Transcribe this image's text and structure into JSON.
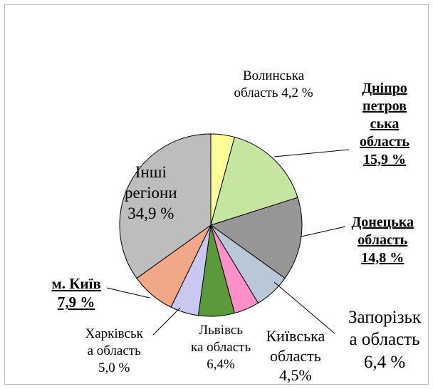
{
  "chart_data": {
    "type": "pie",
    "slices": [
      {
        "key": "volyn",
        "lines": [
          "Волинська",
          "область 4,2 %"
        ],
        "value": 4.2,
        "color": "#ffff99",
        "bold": false
      },
      {
        "key": "dnipro",
        "lines": [
          "Дніпро",
          "петров",
          "ська",
          "область",
          "15,9 %"
        ],
        "value": 15.9,
        "color": "#c6e5a0",
        "bold": true
      },
      {
        "key": "donetsk",
        "lines": [
          "Донецька",
          "область",
          "14,8 %"
        ],
        "value": 14.8,
        "color": "#969696",
        "bold": true
      },
      {
        "key": "zaporizh",
        "lines": [
          "Запорізьк",
          "а область",
          "6,4 %"
        ],
        "value": 6.4,
        "color": "#b8c8d8",
        "bold": false
      },
      {
        "key": "kyivska",
        "lines": [
          "Київська",
          "область",
          "4,5%"
        ],
        "value": 4.5,
        "color": "#ff8fc8",
        "bold": false
      },
      {
        "key": "lviv",
        "lines": [
          "Львівсь",
          "ка область",
          "6,4%"
        ],
        "value": 6.4,
        "color": "#5a9a3a",
        "bold": false
      },
      {
        "key": "kharkiv",
        "lines": [
          "Харківськ",
          "а область",
          "5,0 %"
        ],
        "value": 5.0,
        "color": "#c8c8f0",
        "bold": false
      },
      {
        "key": "kyiv",
        "lines": [
          "м. Київ",
          "7,9 %"
        ],
        "value": 7.9,
        "color": "#f0a888",
        "bold": true
      },
      {
        "key": "other",
        "lines": [
          "Інші",
          "регіони",
          "34,9 %"
        ],
        "value": 34.9,
        "color": "#bdbdbd",
        "bold": false
      }
    ]
  }
}
